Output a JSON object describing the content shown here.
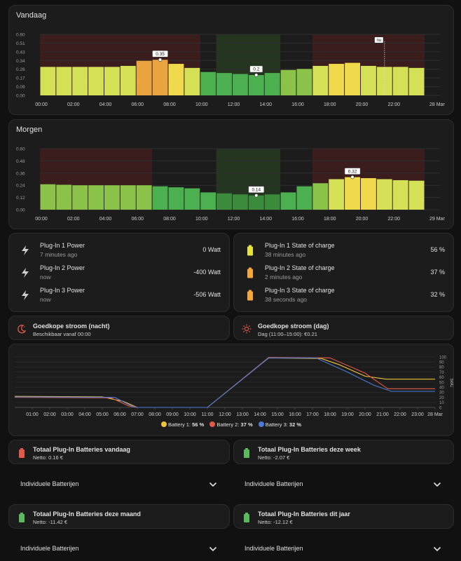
{
  "colors": {
    "cheap": "#2a3a22",
    "expensive": "#3a1d1c",
    "accent_red": "#e05a45",
    "accent_yellow": "#f0c43a",
    "accent_green": "#5cb85c"
  },
  "vandaag": {
    "title": "Vandaag",
    "y_ticks": [
      "0.60",
      "0.51",
      "0.43",
      "0.34",
      "0.26",
      "0.17",
      "0.09",
      "0.00"
    ],
    "x_labels": [
      "00:00",
      "02:00",
      "04:00",
      "06:00",
      "08:00",
      "10:00",
      "12:00",
      "14:00",
      "16:00",
      "18:00",
      "20:00",
      "22:00",
      "28 Mar"
    ],
    "now_label": "nu",
    "max_label": "0.35",
    "min_label": "0.2"
  },
  "morgen": {
    "title": "Morgen",
    "y_ticks": [
      "0.60",
      "0.48",
      "0.36",
      "0.24",
      "0.12",
      "0.00"
    ],
    "x_labels": [
      "00:00",
      "02:00",
      "04:00",
      "06:00",
      "08:00",
      "10:00",
      "12:00",
      "14:00",
      "16:00",
      "18:00",
      "20:00",
      "22:00",
      "29 Mar"
    ],
    "max_label": "0.32",
    "min_label": "0.14"
  },
  "chart_data": [
    {
      "type": "bar",
      "title": "Vandaag",
      "ylim": [
        0,
        0.6
      ],
      "categories": [
        "00",
        "01",
        "02",
        "03",
        "04",
        "05",
        "06",
        "07",
        "08",
        "09",
        "10",
        "11",
        "12",
        "13",
        "14",
        "15",
        "16",
        "17",
        "18",
        "19",
        "20",
        "21",
        "22",
        "23"
      ],
      "values": [
        0.28,
        0.28,
        0.28,
        0.28,
        0.28,
        0.29,
        0.34,
        0.35,
        0.31,
        0.27,
        0.23,
        0.22,
        0.21,
        0.2,
        0.22,
        0.25,
        0.26,
        0.29,
        0.31,
        0.32,
        0.29,
        0.28,
        0.28,
        0.27
      ]
    },
    {
      "type": "bar",
      "title": "Morgen",
      "ylim": [
        0,
        0.6
      ],
      "categories": [
        "00",
        "01",
        "02",
        "03",
        "04",
        "05",
        "06",
        "07",
        "08",
        "09",
        "10",
        "11",
        "12",
        "13",
        "14",
        "15",
        "16",
        "17",
        "18",
        "19",
        "20",
        "21",
        "22",
        "23"
      ],
      "values": [
        0.25,
        0.245,
        0.24,
        0.24,
        0.24,
        0.24,
        0.24,
        0.23,
        0.22,
        0.21,
        0.17,
        0.16,
        0.15,
        0.14,
        0.15,
        0.17,
        0.23,
        0.26,
        0.3,
        0.32,
        0.31,
        0.3,
        0.29,
        0.285
      ]
    },
    {
      "type": "line",
      "ylim": [
        0,
        100
      ],
      "ylabel": "SoC",
      "y_ticks": [
        "100",
        "90",
        "80",
        "70",
        "60",
        "50",
        "40",
        "30",
        "20",
        "10",
        "0"
      ],
      "x_labels": [
        "01:00",
        "02:00",
        "03:00",
        "04:00",
        "05:00",
        "06:00",
        "07:00",
        "08:00",
        "09:00",
        "10:00",
        "11:00",
        "12:00",
        "13:00",
        "14:00",
        "15:00",
        "16:00",
        "17:00",
        "18:00",
        "19:00",
        "20:00",
        "21:00",
        "22:00",
        "23:00",
        "28 Mar"
      ],
      "series": [
        {
          "name": "Battery 1",
          "color": "#f0c43a",
          "legend_value": "56 %",
          "points": [
            [
              0,
              22
            ],
            [
              5,
              21
            ],
            [
              6.2,
              12
            ],
            [
              7,
              0
            ],
            [
              11,
              0
            ],
            [
              14.5,
              98
            ],
            [
              17.5,
              97
            ],
            [
              18.5,
              85
            ],
            [
              20,
              62
            ],
            [
              21.2,
              56
            ],
            [
              24,
              56
            ]
          ]
        },
        {
          "name": "Battery 2",
          "color": "#e05a45",
          "legend_value": "37 %",
          "points": [
            [
              0,
              20
            ],
            [
              5.5,
              19
            ],
            [
              6.5,
              3
            ],
            [
              7,
              0
            ],
            [
              11,
              0
            ],
            [
              14.5,
              99
            ],
            [
              18,
              98
            ],
            [
              20,
              68
            ],
            [
              21.3,
              37
            ],
            [
              24,
              37
            ]
          ]
        },
        {
          "name": "Battery 3",
          "color": "#4d79d8",
          "legend_value": "32 %",
          "points": [
            [
              0,
              21
            ],
            [
              5.7,
              20
            ],
            [
              6.6,
              4
            ],
            [
              7,
              0
            ],
            [
              11,
              0
            ],
            [
              14.5,
              98
            ],
            [
              17.2,
              98
            ],
            [
              19,
              70
            ],
            [
              20.5,
              44
            ],
            [
              21.5,
              32
            ],
            [
              24,
              32
            ]
          ]
        }
      ]
    }
  ],
  "power": [
    {
      "name": "Plug-In 1 Power",
      "sub": "7 minutes ago",
      "value": "0 Watt",
      "icon": "flash-icon"
    },
    {
      "name": "Plug-In 2 Power",
      "sub": "now",
      "value": "-400 Watt",
      "icon": "flash-icon"
    },
    {
      "name": "Plug-In 3 Power",
      "sub": "now",
      "value": "-506 Watt",
      "icon": "flash-icon"
    }
  ],
  "soc": [
    {
      "name": "Plug-In 1 State of charge",
      "sub": "38 minutes ago",
      "value": "56 %",
      "icon_color": "#e7e23a"
    },
    {
      "name": "Plug-In 2 State of charge",
      "sub": "2 minutes ago",
      "value": "37 %",
      "icon_color": "#f0a93a"
    },
    {
      "name": "Plug-In 3 State of charge",
      "sub": "38 seconds ago",
      "value": "32 %",
      "icon_color": "#f0a93a"
    }
  ],
  "cheap_night": {
    "title": "Goedkope stroom (nacht)",
    "sub": "Beschikbaar vanaf 00:00"
  },
  "cheap_day": {
    "title": "Goedkope stroom (dag)",
    "sub": "Dag (11:00–15:00): €0.21"
  },
  "totals": [
    {
      "title": "Totaal Plug-In Batteries vandaag",
      "sub": "Netto: 0.16 €",
      "icon_color": "#e05a45"
    },
    {
      "title": "Totaal Plug-In Batteries deze week",
      "sub": "Netto: -2.07 €",
      "icon_color": "#5cb85c"
    },
    {
      "title": "Totaal Plug-In Batteries deze maand",
      "sub": "Netto: -11.42 €",
      "icon_color": "#5cb85c"
    },
    {
      "title": "Totaal Plug-In Batteries dit jaar",
      "sub": "Netto: -12.12 €",
      "icon_color": "#5cb85c"
    }
  ],
  "expander_label": "Individuele Batterijen"
}
